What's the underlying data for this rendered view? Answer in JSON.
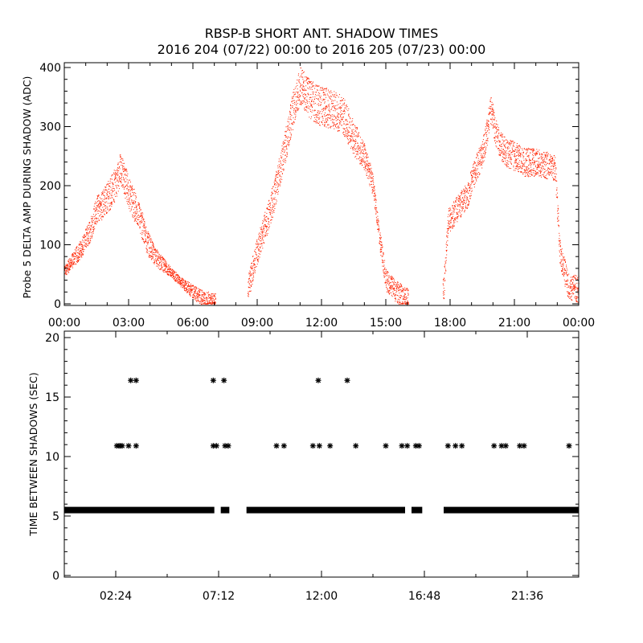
{
  "title_line1": "RBSP-B SHORT ANT. SHADOW TIMES",
  "title_line2": "2016 204 (07/22) 00:00 to 2016 205 (07/23) 00:00",
  "colors": {
    "data_top": "#ff2200",
    "data_bottom": "#000000",
    "axes": "#000000"
  },
  "chart_data": [
    {
      "type": "scatter",
      "ylabel": "Probe 5 DELTA AMP DURING SHADOW (ADC)",
      "xlabel": "",
      "xlim": [
        0,
        24
      ],
      "ylim": [
        0,
        400
      ],
      "yticks": [
        "0",
        "100",
        "200",
        "300",
        "400"
      ],
      "xticks": [
        "00:00",
        "03:00",
        "06:00",
        "09:00",
        "12:00",
        "15:00",
        "18:00",
        "21:00",
        "00:00"
      ],
      "grid": false,
      "marker_color": "red",
      "x_units": "hours UT",
      "envelope": [
        {
          "x": 0.0,
          "y": 55
        },
        {
          "x": 0.4,
          "y": 75
        },
        {
          "x": 0.8,
          "y": 95
        },
        {
          "x": 1.2,
          "y": 125
        },
        {
          "x": 1.5,
          "y": 160
        },
        {
          "x": 1.8,
          "y": 170
        },
        {
          "x": 2.1,
          "y": 185
        },
        {
          "x": 2.4,
          "y": 205
        },
        {
          "x": 2.6,
          "y": 230
        },
        {
          "x": 2.8,
          "y": 210
        },
        {
          "x": 3.0,
          "y": 190
        },
        {
          "x": 3.2,
          "y": 170
        },
        {
          "x": 3.5,
          "y": 150
        },
        {
          "x": 3.8,
          "y": 110
        },
        {
          "x": 4.2,
          "y": 80
        },
        {
          "x": 4.8,
          "y": 60
        },
        {
          "x": 5.5,
          "y": 35
        },
        {
          "x": 6.2,
          "y": 15
        },
        {
          "x": 7.0,
          "y": 2
        },
        {
          "x": 8.6,
          "y": 30
        },
        {
          "x": 8.9,
          "y": 80
        },
        {
          "x": 9.3,
          "y": 125
        },
        {
          "x": 9.8,
          "y": 185
        },
        {
          "x": 10.2,
          "y": 250
        },
        {
          "x": 10.6,
          "y": 320
        },
        {
          "x": 11.0,
          "y": 370
        },
        {
          "x": 11.5,
          "y": 345
        },
        {
          "x": 12.0,
          "y": 335
        },
        {
          "x": 12.5,
          "y": 330
        },
        {
          "x": 13.0,
          "y": 320
        },
        {
          "x": 13.5,
          "y": 280
        },
        {
          "x": 14.0,
          "y": 250
        },
        {
          "x": 14.4,
          "y": 200
        },
        {
          "x": 14.7,
          "y": 110
        },
        {
          "x": 15.0,
          "y": 40
        },
        {
          "x": 15.5,
          "y": 20
        },
        {
          "x": 16.0,
          "y": 8
        },
        {
          "x": 17.7,
          "y": 30
        },
        {
          "x": 17.9,
          "y": 140
        },
        {
          "x": 18.3,
          "y": 160
        },
        {
          "x": 18.8,
          "y": 185
        },
        {
          "x": 19.2,
          "y": 230
        },
        {
          "x": 19.5,
          "y": 255
        },
        {
          "x": 19.7,
          "y": 290
        },
        {
          "x": 19.9,
          "y": 330
        },
        {
          "x": 20.1,
          "y": 290
        },
        {
          "x": 20.5,
          "y": 260
        },
        {
          "x": 21.0,
          "y": 250
        },
        {
          "x": 21.5,
          "y": 240
        },
        {
          "x": 22.0,
          "y": 240
        },
        {
          "x": 22.5,
          "y": 235
        },
        {
          "x": 22.9,
          "y": 230
        },
        {
          "x": 23.1,
          "y": 90
        },
        {
          "x": 23.5,
          "y": 30
        },
        {
          "x": 24.0,
          "y": 25
        }
      ],
      "scatter_width": [
        {
          "x": 0.0,
          "w": 18
        },
        {
          "x": 2.0,
          "w": 55
        },
        {
          "x": 3.3,
          "w": 55
        },
        {
          "x": 5.0,
          "w": 15
        },
        {
          "x": 10.5,
          "w": 60
        },
        {
          "x": 12.0,
          "w": 70
        },
        {
          "x": 13.5,
          "w": 60
        },
        {
          "x": 14.5,
          "w": 35
        },
        {
          "x": 19.0,
          "w": 45
        },
        {
          "x": 20.0,
          "w": 50
        },
        {
          "x": 21.0,
          "w": 50
        },
        {
          "x": 22.8,
          "w": 45
        }
      ]
    },
    {
      "type": "scatter",
      "ylabel": "TIME BETWEEN SHADOWS (SEC)",
      "xlabel": "",
      "xlim": [
        0,
        24
      ],
      "ylim": [
        0,
        20
      ],
      "yticks": [
        "0",
        "5",
        "10",
        "15",
        "20"
      ],
      "xticks": [
        "02:24",
        "07:12",
        "12:00",
        "16:48",
        "21:36"
      ],
      "grid": false,
      "marker": "asterisk",
      "baseline_value": 5.5,
      "baseline_segments": [
        [
          0.0,
          7.0
        ],
        [
          7.3,
          7.7
        ],
        [
          8.5,
          15.9
        ],
        [
          16.2,
          16.7
        ],
        [
          17.7,
          24.0
        ]
      ],
      "points": [
        {
          "x": 2.45,
          "y": 10.9
        },
        {
          "x": 2.55,
          "y": 10.9
        },
        {
          "x": 2.62,
          "y": 10.9
        },
        {
          "x": 2.7,
          "y": 10.9
        },
        {
          "x": 3.0,
          "y": 10.9
        },
        {
          "x": 3.35,
          "y": 10.9
        },
        {
          "x": 3.1,
          "y": 16.4
        },
        {
          "x": 3.35,
          "y": 16.4
        },
        {
          "x": 6.95,
          "y": 16.4
        },
        {
          "x": 7.45,
          "y": 16.4
        },
        {
          "x": 6.95,
          "y": 10.9
        },
        {
          "x": 7.1,
          "y": 10.9
        },
        {
          "x": 7.5,
          "y": 10.9
        },
        {
          "x": 7.65,
          "y": 10.9
        },
        {
          "x": 9.9,
          "y": 10.9
        },
        {
          "x": 10.25,
          "y": 10.9
        },
        {
          "x": 11.6,
          "y": 10.9
        },
        {
          "x": 11.9,
          "y": 10.9
        },
        {
          "x": 12.4,
          "y": 10.9
        },
        {
          "x": 11.85,
          "y": 16.4
        },
        {
          "x": 13.2,
          "y": 16.4
        },
        {
          "x": 13.6,
          "y": 10.9
        },
        {
          "x": 15.0,
          "y": 10.9
        },
        {
          "x": 15.75,
          "y": 10.9
        },
        {
          "x": 16.0,
          "y": 10.9
        },
        {
          "x": 16.4,
          "y": 10.9
        },
        {
          "x": 16.55,
          "y": 10.9
        },
        {
          "x": 17.9,
          "y": 10.9
        },
        {
          "x": 18.25,
          "y": 10.9
        },
        {
          "x": 18.55,
          "y": 10.9
        },
        {
          "x": 20.05,
          "y": 10.9
        },
        {
          "x": 20.4,
          "y": 10.9
        },
        {
          "x": 20.6,
          "y": 10.9
        },
        {
          "x": 21.25,
          "y": 10.9
        },
        {
          "x": 21.45,
          "y": 10.9
        },
        {
          "x": 23.55,
          "y": 10.9
        }
      ]
    }
  ]
}
